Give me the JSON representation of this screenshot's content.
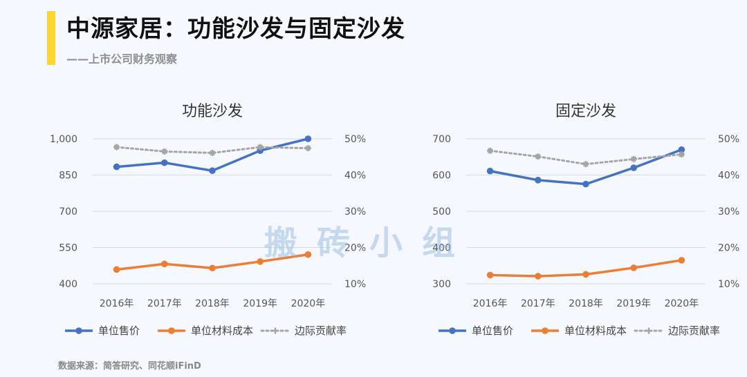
{
  "header": {
    "title": "中源家居：功能沙发与固定沙发",
    "subtitle": "——上市公司财务观察"
  },
  "watermark": "搬砖小组",
  "source": "数据来源：简答研究、同花顺iFinD",
  "colors": {
    "accent": "#fed631",
    "price": "#4472c4",
    "cost": "#ed7d31",
    "margin": "#a5a5a5"
  },
  "chart_data": [
    {
      "type": "line",
      "title": "功能沙发",
      "categories": [
        "2016年",
        "2017年",
        "2018年",
        "2019年",
        "2020年"
      ],
      "left_axis": {
        "ylim": [
          400,
          1000
        ],
        "ticks": [
          400,
          550,
          700,
          850,
          1000
        ],
        "tick_labels": [
          "400",
          "550",
          "700",
          "850",
          "1,000"
        ]
      },
      "right_axis": {
        "ylim": [
          10,
          50
        ],
        "ticks": [
          10,
          20,
          30,
          40,
          50
        ],
        "tick_labels": [
          "10%",
          "20%",
          "30%",
          "40%",
          "50%"
        ]
      },
      "series": [
        {
          "name": "单位售价",
          "axis": "left",
          "style": "solid",
          "color": "#4472c4",
          "values": [
            884,
            901,
            868,
            951,
            1000
          ]
        },
        {
          "name": "单位材料成本",
          "axis": "left",
          "style": "solid",
          "color": "#ed7d31",
          "values": [
            459,
            482,
            465,
            492,
            521
          ]
        },
        {
          "name": "边际贡献率",
          "axis": "right",
          "style": "dotted",
          "color": "#a5a5a5",
          "values": [
            47.7,
            46.5,
            46.1,
            47.7,
            47.4
          ]
        }
      ],
      "legend": "bottom"
    },
    {
      "type": "line",
      "title": "固定沙发",
      "categories": [
        "2016年",
        "2017年",
        "2018年",
        "2019年",
        "2020年"
      ],
      "left_axis": {
        "ylim": [
          300,
          700
        ],
        "ticks": [
          300,
          400,
          500,
          600,
          700
        ],
        "tick_labels": [
          "300",
          "400",
          "500",
          "600",
          "700"
        ]
      },
      "right_axis": {
        "ylim": [
          10,
          50
        ],
        "ticks": [
          10,
          20,
          30,
          40,
          50
        ],
        "tick_labels": [
          "10%",
          "20%",
          "30%",
          "40%",
          "50%"
        ]
      },
      "series": [
        {
          "name": "单位售价",
          "axis": "left",
          "style": "solid",
          "color": "#4472c4",
          "values": [
            611,
            586,
            575,
            620,
            670
          ]
        },
        {
          "name": "单位材料成本",
          "axis": "left",
          "style": "solid",
          "color": "#ed7d31",
          "values": [
            324,
            321,
            326,
            344,
            365
          ]
        },
        {
          "name": "边际贡献率",
          "axis": "right",
          "style": "dotted",
          "color": "#a5a5a5",
          "values": [
            46.7,
            45.1,
            43.0,
            44.4,
            45.7
          ]
        }
      ],
      "legend": "bottom"
    }
  ]
}
